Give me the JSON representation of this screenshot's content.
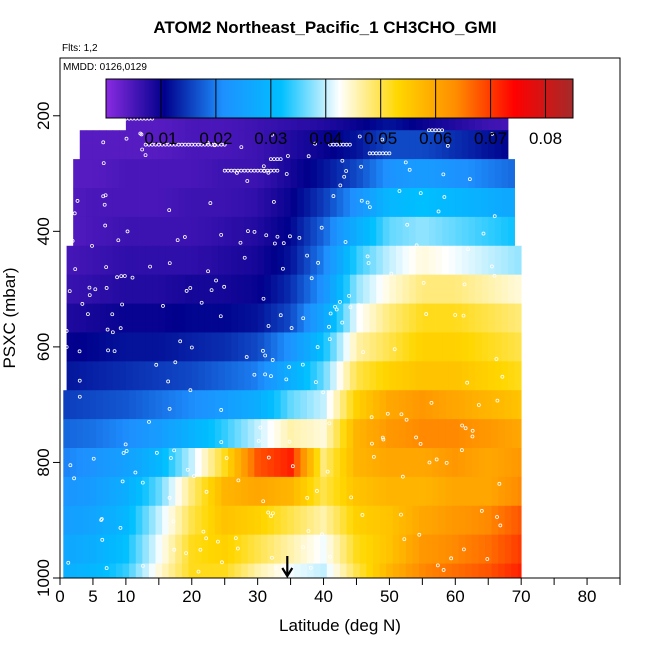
{
  "chart_data": {
    "type": "heatmap",
    "title": "ATOM2 Northeast_Pacific_1 CH3CHO_GMI",
    "flights_note": "Flts: 1,2",
    "mmdd_note": "MMDD: 0126,0129",
    "xlabel": "Latitude (deg N)",
    "ylabel": "PSXC (mbar)",
    "xlim": [
      0,
      85
    ],
    "ylim": [
      1000,
      100
    ],
    "x_ticks": [
      0,
      5,
      10,
      20,
      30,
      40,
      50,
      60,
      70,
      80
    ],
    "x_tick_labels": [
      "0",
      "5",
      "10",
      "20",
      "30",
      "40",
      "50",
      "60",
      "70",
      "80"
    ],
    "x_minor_ticks": [
      15,
      25,
      35,
      45,
      55,
      65,
      75,
      85
    ],
    "y_ticks": [
      200,
      400,
      600,
      800,
      1000
    ],
    "y_tick_labels": [
      "200",
      "400",
      "600",
      "800",
      "1000"
    ],
    "colorbar": {
      "range": [
        0,
        0.085
      ],
      "ticks": [
        0.01,
        0.02,
        0.03,
        0.04,
        0.05,
        0.06,
        0.07,
        0.08
      ],
      "tick_labels": [
        "0.01",
        "0.02",
        "0.03",
        "0.04",
        "0.05",
        "0.06",
        "0.07",
        "0.08"
      ],
      "colors": [
        "#8a2be2",
        "#00008b",
        "#1e90ff",
        "#00bfff",
        "#ffffff",
        "#ffd700",
        "#ff8c00",
        "#ff0000",
        "#a52a2a"
      ]
    },
    "grid": false,
    "marker_latitude": 34.5,
    "pressure_levels": [
      200,
      250,
      300,
      350,
      400,
      450,
      500,
      550,
      600,
      650,
      700,
      750,
      800,
      850,
      900,
      950,
      1000
    ],
    "profiles": [
      {
        "lat": 0,
        "values": [
          0.004,
          0.004,
          0.004,
          0.004,
          0.004,
          0.005,
          0.006,
          0.008,
          0.01,
          0.012,
          0.015,
          0.018,
          0.02,
          0.022,
          0.024,
          0.026,
          0.028
        ]
      },
      {
        "lat": 5,
        "values": [
          0.004,
          0.004,
          0.004,
          0.005,
          0.005,
          0.006,
          0.007,
          0.009,
          0.011,
          0.013,
          0.016,
          0.019,
          0.022,
          0.024,
          0.026,
          0.028,
          0.03
        ]
      },
      {
        "lat": 10,
        "values": [
          0.004,
          0.004,
          0.005,
          0.005,
          0.006,
          0.007,
          0.008,
          0.01,
          0.012,
          0.014,
          0.017,
          0.021,
          0.025,
          0.028,
          0.03,
          0.032,
          0.034
        ]
      },
      {
        "lat": 15,
        "values": [
          0.004,
          0.004,
          0.005,
          0.005,
          0.006,
          0.007,
          0.008,
          0.01,
          0.012,
          0.015,
          0.019,
          0.024,
          0.03,
          0.036,
          0.04,
          0.042,
          0.044
        ]
      },
      {
        "lat": 20,
        "values": [
          0.005,
          0.005,
          0.005,
          0.006,
          0.006,
          0.007,
          0.009,
          0.011,
          0.013,
          0.016,
          0.021,
          0.029,
          0.04,
          0.048,
          0.05,
          0.052,
          0.052
        ]
      },
      {
        "lat": 25,
        "values": [
          0.005,
          0.005,
          0.006,
          0.006,
          0.007,
          0.008,
          0.009,
          0.011,
          0.014,
          0.018,
          0.024,
          0.034,
          0.052,
          0.058,
          0.056,
          0.054,
          0.052
        ]
      },
      {
        "lat": 30,
        "values": [
          0.006,
          0.006,
          0.006,
          0.007,
          0.008,
          0.009,
          0.01,
          0.012,
          0.016,
          0.02,
          0.028,
          0.04,
          0.068,
          0.06,
          0.054,
          0.05,
          0.046
        ]
      },
      {
        "lat": 35,
        "values": [
          0.007,
          0.008,
          0.009,
          0.01,
          0.011,
          0.012,
          0.014,
          0.016,
          0.022,
          0.028,
          0.036,
          0.046,
          0.072,
          0.058,
          0.05,
          0.046,
          0.042
        ]
      },
      {
        "lat": 40,
        "values": [
          0.008,
          0.01,
          0.012,
          0.015,
          0.018,
          0.02,
          0.022,
          0.026,
          0.032,
          0.036,
          0.04,
          0.044,
          0.048,
          0.05,
          0.046,
          0.042,
          0.04
        ]
      },
      {
        "lat": 45,
        "values": [
          0.01,
          0.012,
          0.016,
          0.022,
          0.028,
          0.034,
          0.038,
          0.042,
          0.046,
          0.05,
          0.054,
          0.058,
          0.058,
          0.056,
          0.054,
          0.052,
          0.05
        ]
      },
      {
        "lat": 50,
        "values": [
          0.012,
          0.016,
          0.022,
          0.03,
          0.036,
          0.04,
          0.044,
          0.048,
          0.05,
          0.054,
          0.06,
          0.062,
          0.06,
          0.058,
          0.056,
          0.056,
          0.058
        ]
      },
      {
        "lat": 55,
        "values": [
          0.01,
          0.016,
          0.024,
          0.032,
          0.038,
          0.044,
          0.048,
          0.052,
          0.054,
          0.056,
          0.062,
          0.064,
          0.06,
          0.058,
          0.06,
          0.062,
          0.064
        ]
      },
      {
        "lat": 60,
        "values": [
          0.008,
          0.014,
          0.022,
          0.03,
          0.036,
          0.042,
          0.048,
          0.052,
          0.054,
          0.056,
          0.06,
          0.064,
          0.062,
          0.06,
          0.062,
          0.064,
          0.066
        ]
      },
      {
        "lat": 65,
        "values": [
          0.006,
          0.012,
          0.02,
          0.028,
          0.034,
          0.04,
          0.046,
          0.05,
          0.052,
          0.054,
          0.058,
          0.062,
          0.06,
          0.06,
          0.064,
          0.066,
          0.068
        ]
      },
      {
        "lat": 70,
        "values": [
          0.005,
          0.01,
          0.018,
          0.026,
          0.032,
          0.038,
          0.044,
          0.048,
          0.05,
          0.052,
          0.056,
          0.06,
          0.062,
          0.064,
          0.068,
          0.07,
          0.072
        ]
      }
    ]
  }
}
